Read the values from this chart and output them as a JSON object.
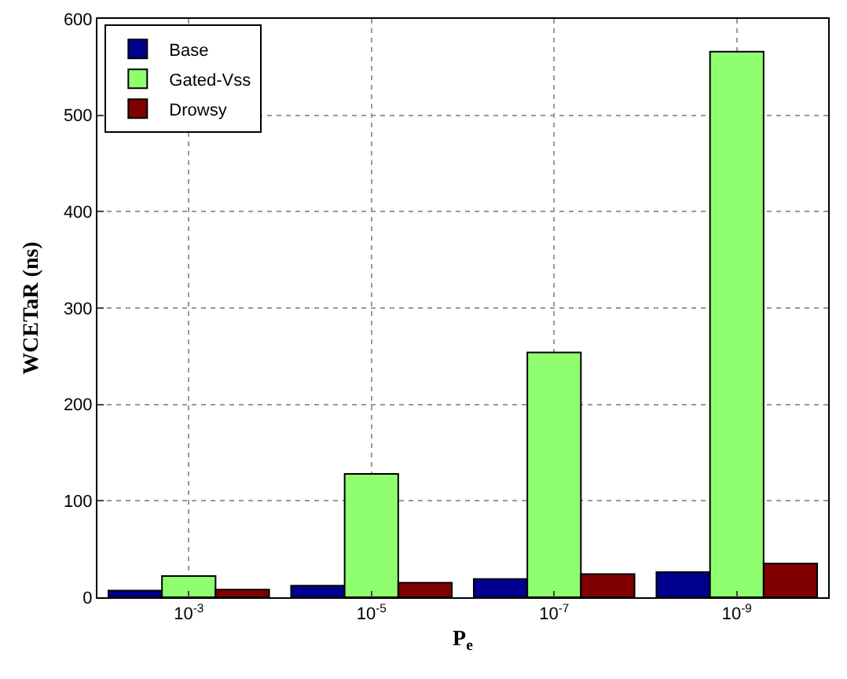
{
  "chart_data": {
    "type": "bar",
    "xlabel": "P$_{e}$",
    "ylabel": "WCETaR (ns)",
    "categories": [
      "10$^{-3}$",
      "10$^{-5}$",
      "10$^{-7}$",
      "10$^{-9}$"
    ],
    "series": [
      {
        "name": "Base",
        "color": "#00008f",
        "values": [
          7,
          12,
          19,
          26
        ]
      },
      {
        "name": "Gated-Vss",
        "color": "#8fff70",
        "values": [
          22,
          128,
          254,
          566
        ]
      },
      {
        "name": "Drowsy",
        "color": "#800000",
        "values": [
          8,
          15,
          24,
          35
        ]
      }
    ],
    "ylim": [
      0,
      600
    ],
    "yticks": [
      0,
      100,
      200,
      300,
      400,
      500,
      600
    ],
    "grid": true,
    "legend": "top left"
  }
}
